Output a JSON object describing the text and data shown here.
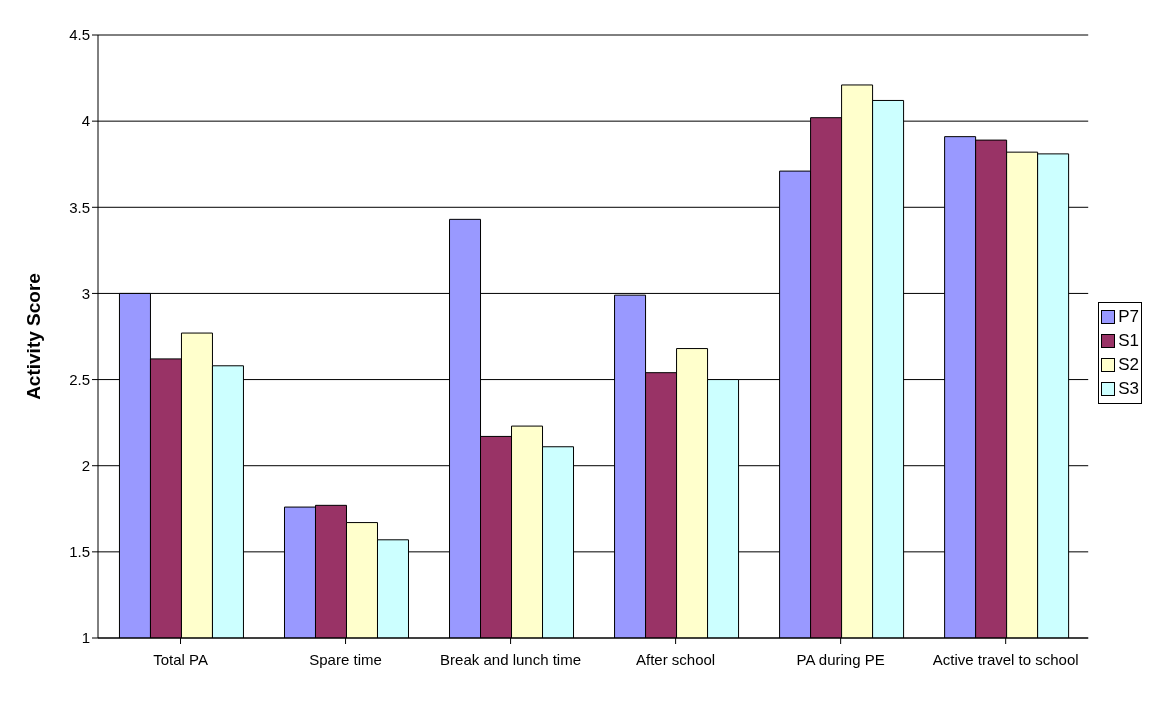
{
  "chart_data": {
    "type": "bar",
    "ylabel": "Activity Score",
    "categories": [
      "Total PA",
      "Spare time",
      "Break and lunch time",
      "After school",
      "PA during PE",
      "Active travel to school"
    ],
    "series": [
      {
        "name": "P7",
        "color": "#9999ff",
        "values": [
          3.0,
          1.76,
          3.43,
          2.99,
          3.71,
          3.91
        ]
      },
      {
        "name": "S1",
        "color": "#993366",
        "values": [
          2.62,
          1.77,
          2.17,
          2.54,
          4.02,
          3.89
        ]
      },
      {
        "name": "S2",
        "color": "#ffffcc",
        "values": [
          2.77,
          1.67,
          2.23,
          2.68,
          4.21,
          3.82
        ]
      },
      {
        "name": "S3",
        "color": "#ccffff",
        "values": [
          2.58,
          1.57,
          2.11,
          2.5,
          4.12,
          3.81
        ]
      }
    ],
    "ylim": [
      1,
      4.5
    ],
    "yticks": [
      1,
      1.5,
      2,
      2.5,
      3,
      3.5,
      4,
      4.5
    ],
    "grid": "y",
    "legend": "right"
  }
}
